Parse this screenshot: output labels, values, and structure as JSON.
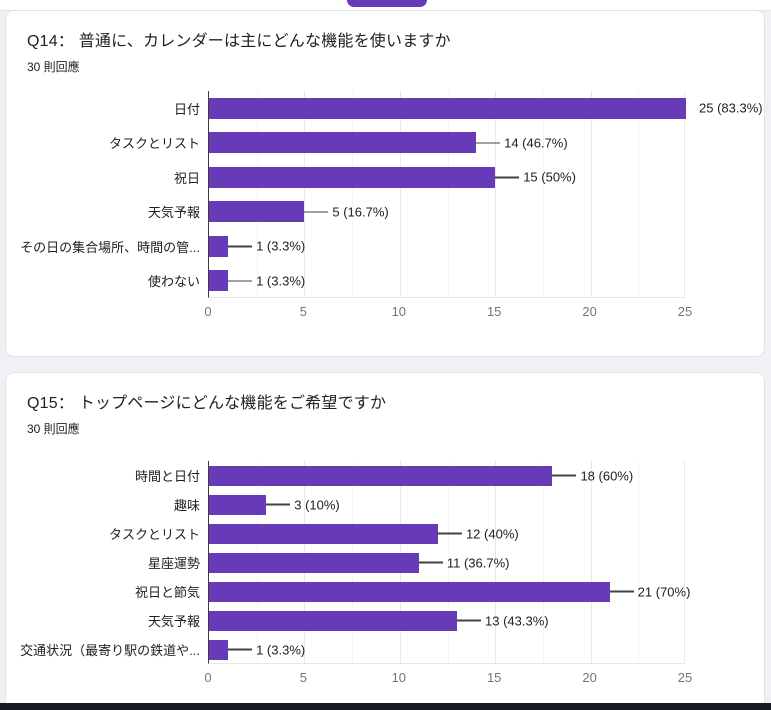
{
  "colors": {
    "bar": "#673ab7",
    "tab_indicator": "#673ab7",
    "bottom_edge": "#171b22",
    "page_background": "#f1f0f5"
  },
  "cards": [
    {
      "title": "Q14： 普通に、カレンダーは主にどんな機能を使いますか",
      "responses": "30 則回應"
    },
    {
      "title": "Q15： トップページにどんな機能をご希望ですか",
      "responses": "30 則回應"
    }
  ],
  "chart_data": [
    {
      "type": "bar",
      "orientation": "horizontal",
      "title": "Q14： 普通に、カレンダーは主にどんな機能を使いますか",
      "subtitle": "30 則回應",
      "categories": [
        "日付",
        "タスクとリスト",
        "祝日",
        "天気予報",
        "その日の集合場所、時間の管...",
        "使わない"
      ],
      "values": [
        25,
        14,
        15,
        5,
        1,
        1
      ],
      "value_labels": [
        "25 (83.3%)",
        "14 (46.7%)",
        "15 (50%)",
        "5 (16.7%)",
        "1 (3.3%)",
        "1 (3.3%)"
      ],
      "xlim": [
        0,
        25
      ],
      "xticks": [
        0,
        5,
        10,
        15,
        20,
        25
      ],
      "grid": true,
      "legend": false,
      "bar_color": "#673ab7"
    },
    {
      "type": "bar",
      "orientation": "horizontal",
      "title": "Q15： トップページにどんな機能をご希望ですか",
      "subtitle": "30 則回應",
      "categories": [
        "時間と日付",
        "趣味",
        "タスクとリスト",
        "星座運勢",
        "祝日と節気",
        "天気予報",
        "交通状況（最寄り駅の鉄道や..."
      ],
      "values": [
        18,
        3,
        12,
        11,
        21,
        13,
        1
      ],
      "value_labels": [
        "18 (60%)",
        "3 (10%)",
        "12 (40%)",
        "11 (36.7%)",
        "21 (70%)",
        "13 (43.3%)",
        "1 (3.3%)"
      ],
      "xlim": [
        0,
        25
      ],
      "xticks": [
        0,
        5,
        10,
        15,
        20,
        25
      ],
      "grid": true,
      "legend": false,
      "bar_color": "#673ab7"
    }
  ]
}
